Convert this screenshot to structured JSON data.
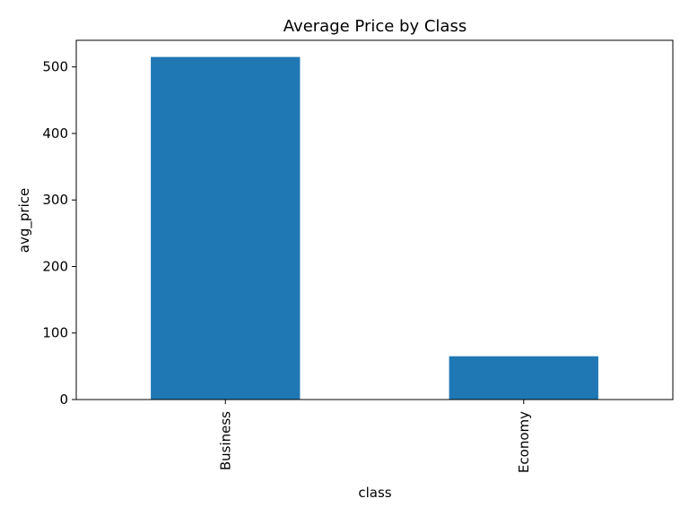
{
  "chart_data": {
    "type": "bar",
    "title": "Average Price by Class",
    "xlabel": "class",
    "ylabel": "avg_price",
    "categories": [
      "Business",
      "Economy"
    ],
    "values": [
      515,
      65
    ],
    "ylim": [
      0,
      540
    ],
    "yticks": [
      0,
      100,
      200,
      300,
      400,
      500
    ],
    "ytick_labels": [
      "0",
      "100",
      "200",
      "300",
      "400",
      "500"
    ],
    "xtick_rotation": "vertical",
    "grid": false,
    "legend": false,
    "bar_color": "#1f77b4"
  }
}
